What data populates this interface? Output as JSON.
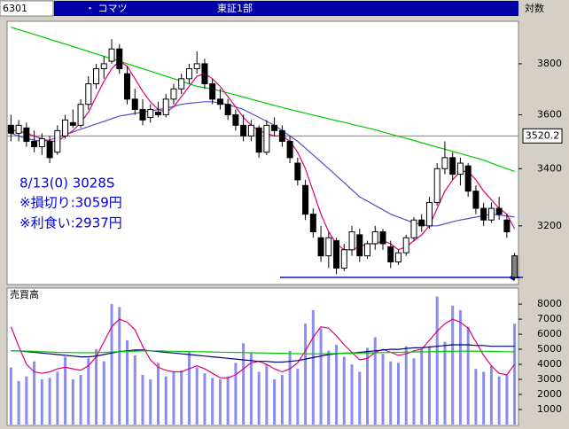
{
  "header": {
    "code": "6301",
    "name": "・ コマツ",
    "market": "東証1部",
    "scale_label": "対数"
  },
  "chart_data": [
    {
      "type": "candlestick",
      "log_scale": true,
      "ylim": [
        3010,
        3960
      ],
      "yticks": [
        3200,
        3400,
        3600,
        3800
      ],
      "price_marker": 3520.2,
      "up_color": "#ffffff",
      "down_color": "#000000",
      "annotations": [
        "8/13(0) 3028S",
        "※損切り:3059円",
        "※利食い:2937円"
      ],
      "candles": {
        "open": [
          3560,
          3530,
          3550,
          3500,
          3480,
          3500,
          3460,
          3520,
          3570,
          3560,
          3640,
          3720,
          3780,
          3810,
          3860,
          3760,
          3660,
          3620,
          3590,
          3610,
          3600,
          3660,
          3700,
          3740,
          3780,
          3800,
          3720,
          3660,
          3640,
          3600,
          3560,
          3520,
          3550,
          3460,
          3560,
          3540,
          3500,
          3420,
          3340,
          3240,
          3160,
          3100,
          3150,
          3060,
          3120,
          3170,
          3100,
          3140,
          3180,
          3130,
          3080,
          3110,
          3160,
          3220,
          3200,
          3280,
          3400,
          3440,
          3380,
          3410,
          3320,
          3260,
          3220,
          3260,
          3220,
          3100
        ],
        "high": [
          3600,
          3580,
          3570,
          3540,
          3530,
          3520,
          3560,
          3600,
          3620,
          3660,
          3750,
          3800,
          3830,
          3900,
          3880,
          3790,
          3700,
          3660,
          3640,
          3650,
          3680,
          3720,
          3760,
          3800,
          3850,
          3820,
          3740,
          3700,
          3660,
          3620,
          3600,
          3580,
          3560,
          3580,
          3590,
          3560,
          3520,
          3440,
          3360,
          3260,
          3200,
          3180,
          3160,
          3140,
          3200,
          3190,
          3150,
          3200,
          3190,
          3150,
          3120,
          3170,
          3230,
          3240,
          3300,
          3420,
          3500,
          3460,
          3440,
          3420,
          3340,
          3280,
          3280,
          3300,
          3240,
          3110
        ],
        "low": [
          3500,
          3500,
          3480,
          3460,
          3450,
          3420,
          3450,
          3510,
          3550,
          3550,
          3620,
          3700,
          3740,
          3800,
          3760,
          3640,
          3600,
          3560,
          3570,
          3590,
          3590,
          3640,
          3680,
          3720,
          3760,
          3700,
          3640,
          3620,
          3580,
          3540,
          3500,
          3500,
          3440,
          3450,
          3520,
          3480,
          3420,
          3340,
          3220,
          3160,
          3080,
          3060,
          3040,
          3050,
          3100,
          3080,
          3090,
          3120,
          3120,
          3060,
          3070,
          3100,
          3150,
          3180,
          3190,
          3270,
          3380,
          3360,
          3340,
          3300,
          3240,
          3200,
          3210,
          3220,
          3160,
          3020
        ],
        "close": [
          3530,
          3560,
          3500,
          3480,
          3510,
          3440,
          3540,
          3580,
          3560,
          3640,
          3720,
          3780,
          3800,
          3860,
          3780,
          3660,
          3620,
          3580,
          3620,
          3600,
          3660,
          3700,
          3740,
          3780,
          3800,
          3720,
          3660,
          3640,
          3600,
          3560,
          3520,
          3560,
          3460,
          3560,
          3540,
          3500,
          3440,
          3360,
          3240,
          3180,
          3100,
          3160,
          3060,
          3120,
          3180,
          3100,
          3140,
          3180,
          3140,
          3080,
          3110,
          3160,
          3220,
          3200,
          3280,
          3400,
          3440,
          3380,
          3420,
          3320,
          3260,
          3220,
          3260,
          3240,
          3180,
          3030
        ]
      },
      "series": [
        {
          "color": "#00c800",
          "values": [
            3950,
            3940,
            3930,
            3920,
            3910,
            3900,
            3890,
            3880,
            3870,
            3860,
            3850,
            3840,
            3830,
            3820,
            3810,
            3800,
            3790,
            3780,
            3770,
            3760,
            3750,
            3740,
            3730,
            3720,
            3710,
            3705,
            3700,
            3692,
            3684,
            3676,
            3668,
            3660,
            3652,
            3644,
            3636,
            3628,
            3620,
            3613,
            3606,
            3599,
            3592,
            3585,
            3578,
            3571,
            3564,
            3557,
            3550,
            3543,
            3535,
            3527,
            3519,
            3511,
            3503,
            3495,
            3487,
            3479,
            3471,
            3463,
            3455,
            3447,
            3439,
            3431,
            3420,
            3410,
            3400,
            3390
          ]
        },
        {
          "color": "#5050c8",
          "values": [
            3530,
            3520,
            3510,
            3505,
            3500,
            3505,
            3515,
            3525,
            3535,
            3545,
            3555,
            3565,
            3575,
            3585,
            3595,
            3600,
            3605,
            3610,
            3615,
            3620,
            3625,
            3632,
            3640,
            3644,
            3647,
            3650,
            3650,
            3645,
            3638,
            3630,
            3620,
            3605,
            3590,
            3575,
            3560,
            3540,
            3520,
            3500,
            3475,
            3450,
            3425,
            3400,
            3375,
            3350,
            3325,
            3300,
            3285,
            3270,
            3255,
            3240,
            3230,
            3220,
            3210,
            3205,
            3200,
            3200,
            3207,
            3214,
            3220,
            3225,
            3230,
            3235,
            3240,
            3237,
            3234,
            3230
          ]
        },
        {
          "color": "#e0007a",
          "values": [
            3540,
            3540,
            3530,
            3520,
            3510,
            3500,
            3500,
            3520,
            3540,
            3570,
            3610,
            3670,
            3730,
            3780,
            3810,
            3790,
            3740,
            3690,
            3650,
            3620,
            3610,
            3630,
            3670,
            3710,
            3750,
            3760,
            3740,
            3710,
            3670,
            3630,
            3590,
            3560,
            3540,
            3530,
            3520,
            3520,
            3500,
            3460,
            3400,
            3320,
            3240,
            3180,
            3140,
            3120,
            3120,
            3130,
            3140,
            3140,
            3150,
            3140,
            3120,
            3130,
            3150,
            3170,
            3200,
            3260,
            3320,
            3360,
            3390,
            3390,
            3360,
            3320,
            3290,
            3260,
            3240,
            3190
          ]
        }
      ]
    },
    {
      "type": "bar",
      "title": "売買高",
      "color": "#8c8cf0",
      "ylim": [
        0,
        8300
      ],
      "yticks": [
        1000,
        2000,
        3000,
        4000,
        5000,
        6000,
        7000,
        8000
      ],
      "values": [
        3800,
        2900,
        3200,
        4200,
        3000,
        3100,
        3500,
        4500,
        3000,
        3300,
        4400,
        5000,
        4200,
        8000,
        7800,
        5600,
        4600,
        3300,
        3000,
        4100,
        3200,
        3500,
        3600,
        4800,
        3800,
        3400,
        3100,
        3000,
        3200,
        4100,
        5400,
        4800,
        3500,
        4000,
        3000,
        3300,
        4900,
        3700,
        6700,
        7600,
        6400,
        4900,
        5300,
        4500,
        4000,
        3500,
        5100,
        5800,
        4700,
        4200,
        4100,
        5200,
        4400,
        5000,
        5200,
        8500,
        5500,
        7900,
        7600,
        6500,
        3700,
        3500,
        3900,
        3200,
        3300,
        6700
      ],
      "series": [
        {
          "color": "#e0007a",
          "values": [
            6500,
            5200,
            4000,
            3500,
            3400,
            3500,
            3700,
            3800,
            3700,
            3600,
            3900,
            4500,
            5500,
            6500,
            7000,
            6800,
            6300,
            5200,
            4300,
            3800,
            3600,
            3500,
            3500,
            3700,
            3900,
            3700,
            3400,
            3100,
            3100,
            3300,
            3700,
            4100,
            4200,
            4000,
            3700,
            3500,
            3700,
            4100,
            4900,
            5800,
            6500,
            6400,
            5900,
            5300,
            4800,
            4300,
            4400,
            4800,
            5000,
            4800,
            4600,
            4700,
            4900,
            5000,
            5600,
            6200,
            6700,
            7000,
            6800,
            6400,
            5500,
            4600,
            3900,
            3400,
            3300,
            4000
          ]
        },
        {
          "color": "#000080",
          "values": [
            4900,
            4900,
            4850,
            4800,
            4750,
            4700,
            4650,
            4600,
            4550,
            4500,
            4500,
            4550,
            4650,
            4750,
            4850,
            4900,
            4950,
            4950,
            4900,
            4850,
            4800,
            4750,
            4700,
            4650,
            4600,
            4550,
            4500,
            4450,
            4400,
            4350,
            4300,
            4250,
            4200,
            4200,
            4150,
            4150,
            4200,
            4250,
            4350,
            4450,
            4550,
            4650,
            4700,
            4750,
            4750,
            4800,
            4850,
            4900,
            4950,
            5000,
            5000,
            5050,
            5100,
            5100,
            5150,
            5200,
            5250,
            5300,
            5300,
            5300,
            5250,
            5250,
            5200,
            5200,
            5200,
            5200
          ]
        },
        {
          "color": "#00c800",
          "values": [
            4900,
            4900,
            4880,
            4860,
            4840,
            4820,
            4800,
            4790,
            4780,
            4770,
            4770,
            4780,
            4800,
            4820,
            4840,
            4860,
            4880,
            4900,
            4900,
            4890,
            4880,
            4870,
            4860,
            4850,
            4840,
            4830,
            4820,
            4810,
            4800,
            4790,
            4780,
            4770,
            4760,
            4750,
            4740,
            4730,
            4720,
            4710,
            4700,
            4700,
            4700,
            4710,
            4720,
            4730,
            4740,
            4750,
            4760,
            4770,
            4780,
            4790,
            4800,
            4810,
            4820,
            4830,
            4840,
            4850,
            4860,
            4870,
            4880,
            4880,
            4880,
            4870,
            4860,
            4850,
            4840,
            4830
          ]
        }
      ]
    }
  ]
}
